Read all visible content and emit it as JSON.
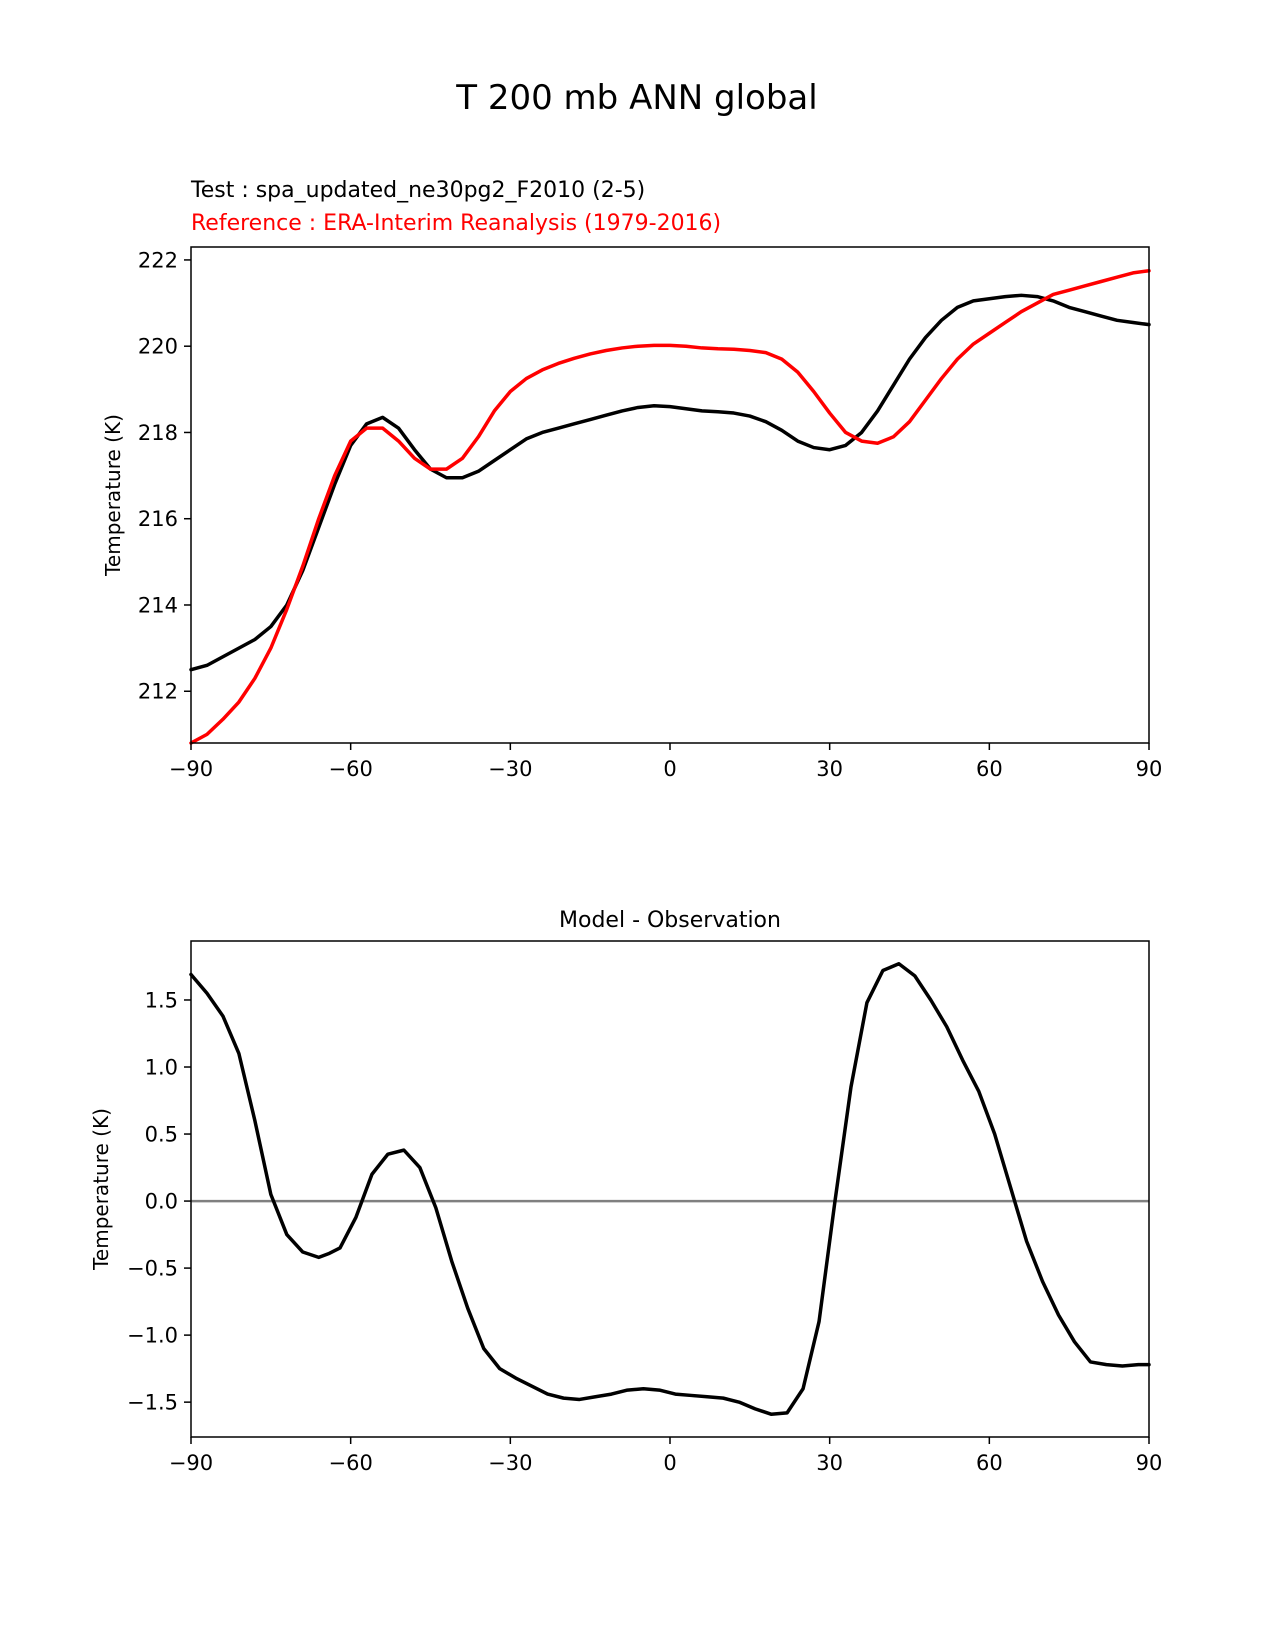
{
  "figure_title": "T 200 mb ANN global",
  "colors": {
    "test": "#000000",
    "reference": "#ff0000",
    "zero_line": "#808080"
  },
  "chart_data": [
    {
      "type": "line",
      "title_test": "Test : spa_updated_ne30pg2_F2010 (2-5)",
      "title_reference": "Reference : ERA-Interim Reanalysis (1979-2016)",
      "xlabel": "",
      "ylabel": "Temperature (K)",
      "xlim": [
        -90,
        90
      ],
      "ylim": [
        210.8,
        222.3
      ],
      "xticks": [
        -90,
        -60,
        -30,
        0,
        30,
        60,
        90
      ],
      "yticks": [
        212,
        214,
        216,
        218,
        220,
        222
      ],
      "series": [
        {
          "name": "Test",
          "color": "#000000",
          "x": [
            -90,
            -87,
            -84,
            -81,
            -78,
            -75,
            -72,
            -69,
            -66,
            -63,
            -60,
            -57,
            -54,
            -51,
            -48,
            -45,
            -42,
            -39,
            -36,
            -33,
            -30,
            -27,
            -24,
            -21,
            -18,
            -15,
            -12,
            -9,
            -6,
            -3,
            0,
            3,
            6,
            9,
            12,
            15,
            18,
            21,
            24,
            27,
            30,
            33,
            36,
            39,
            42,
            45,
            48,
            51,
            54,
            57,
            60,
            63,
            66,
            69,
            72,
            75,
            78,
            81,
            84,
            87,
            90
          ],
          "values": [
            212.5,
            212.6,
            212.8,
            213.0,
            213.2,
            213.5,
            214.0,
            214.8,
            215.8,
            216.8,
            217.7,
            218.2,
            218.35,
            218.1,
            217.6,
            217.15,
            216.95,
            216.95,
            217.1,
            217.35,
            217.6,
            217.85,
            218.0,
            218.1,
            218.2,
            218.3,
            218.4,
            218.5,
            218.58,
            218.62,
            218.6,
            218.55,
            218.5,
            218.48,
            218.45,
            218.38,
            218.25,
            218.05,
            217.8,
            217.65,
            217.6,
            217.7,
            218.0,
            218.5,
            219.1,
            219.7,
            220.2,
            220.6,
            220.9,
            221.05,
            221.1,
            221.15,
            221.18,
            221.15,
            221.05,
            220.9,
            220.8,
            220.7,
            220.6,
            220.55,
            220.5
          ]
        },
        {
          "name": "Reference",
          "color": "#ff0000",
          "x": [
            -90,
            -87,
            -84,
            -81,
            -78,
            -75,
            -72,
            -69,
            -66,
            -63,
            -60,
            -57,
            -54,
            -51,
            -48,
            -45,
            -42,
            -39,
            -36,
            -33,
            -30,
            -27,
            -24,
            -21,
            -18,
            -15,
            -12,
            -9,
            -6,
            -3,
            0,
            3,
            6,
            9,
            12,
            15,
            18,
            21,
            24,
            27,
            30,
            33,
            36,
            39,
            42,
            45,
            48,
            51,
            54,
            57,
            60,
            63,
            66,
            69,
            72,
            75,
            78,
            81,
            84,
            87,
            90
          ],
          "values": [
            210.8,
            211.0,
            211.35,
            211.75,
            212.3,
            213.0,
            213.9,
            214.9,
            216.0,
            217.0,
            217.8,
            218.1,
            218.1,
            217.8,
            217.4,
            217.15,
            217.15,
            217.4,
            217.9,
            218.5,
            218.95,
            219.25,
            219.45,
            219.6,
            219.72,
            219.82,
            219.9,
            219.96,
            220.0,
            220.02,
            220.02,
            220.0,
            219.96,
            219.94,
            219.93,
            219.9,
            219.85,
            219.7,
            219.4,
            218.95,
            218.45,
            218.0,
            217.8,
            217.75,
            217.9,
            218.25,
            218.75,
            219.25,
            219.7,
            220.05,
            220.3,
            220.55,
            220.8,
            221.0,
            221.2,
            221.3,
            221.4,
            221.5,
            221.6,
            221.7,
            221.75
          ]
        }
      ]
    },
    {
      "type": "line",
      "title": "Model - Observation",
      "xlabel": "",
      "ylabel": "Temperature (K)",
      "xlim": [
        -90,
        90
      ],
      "ylim": [
        -1.76,
        1.94
      ],
      "xticks": [
        -90,
        -60,
        -30,
        0,
        30,
        60,
        90
      ],
      "yticks": [
        -1.5,
        -1.0,
        -0.5,
        0.0,
        0.5,
        1.0,
        1.5
      ],
      "ytick_labels": [
        "−1.5",
        "−1.0",
        "−0.5",
        "0.0",
        "0.5",
        "1.0",
        "1.5"
      ],
      "series": [
        {
          "name": "Model - Observation",
          "color": "#000000",
          "x": [
            -90,
            -87,
            -84,
            -81,
            -78,
            -75,
            -72,
            -69,
            -66,
            -64,
            -62,
            -59,
            -56,
            -53,
            -50,
            -47,
            -44,
            -41,
            -38,
            -35,
            -32,
            -29,
            -26,
            -23,
            -20,
            -17,
            -14,
            -11,
            -8,
            -5,
            -2,
            1,
            4,
            7,
            10,
            13,
            16,
            19,
            22,
            25,
            28,
            31,
            34,
            37,
            40,
            43,
            46,
            49,
            52,
            55,
            58,
            61,
            64,
            67,
            70,
            73,
            76,
            79,
            82,
            85,
            88,
            90
          ],
          "values": [
            1.69,
            1.55,
            1.38,
            1.1,
            0.6,
            0.05,
            -0.25,
            -0.38,
            -0.42,
            -0.39,
            -0.35,
            -0.12,
            0.2,
            0.35,
            0.38,
            0.25,
            -0.05,
            -0.45,
            -0.8,
            -1.1,
            -1.25,
            -1.32,
            -1.38,
            -1.44,
            -1.47,
            -1.48,
            -1.46,
            -1.44,
            -1.41,
            -1.4,
            -1.41,
            -1.44,
            -1.45,
            -1.46,
            -1.47,
            -1.5,
            -1.55,
            -1.59,
            -1.58,
            -1.4,
            -0.9,
            0.0,
            0.85,
            1.48,
            1.72,
            1.77,
            1.68,
            1.5,
            1.3,
            1.05,
            0.82,
            0.5,
            0.1,
            -0.3,
            -0.6,
            -0.85,
            -1.05,
            -1.2,
            -1.22,
            -1.23,
            -1.22,
            -1.22
          ]
        }
      ],
      "zero_line": true
    }
  ]
}
